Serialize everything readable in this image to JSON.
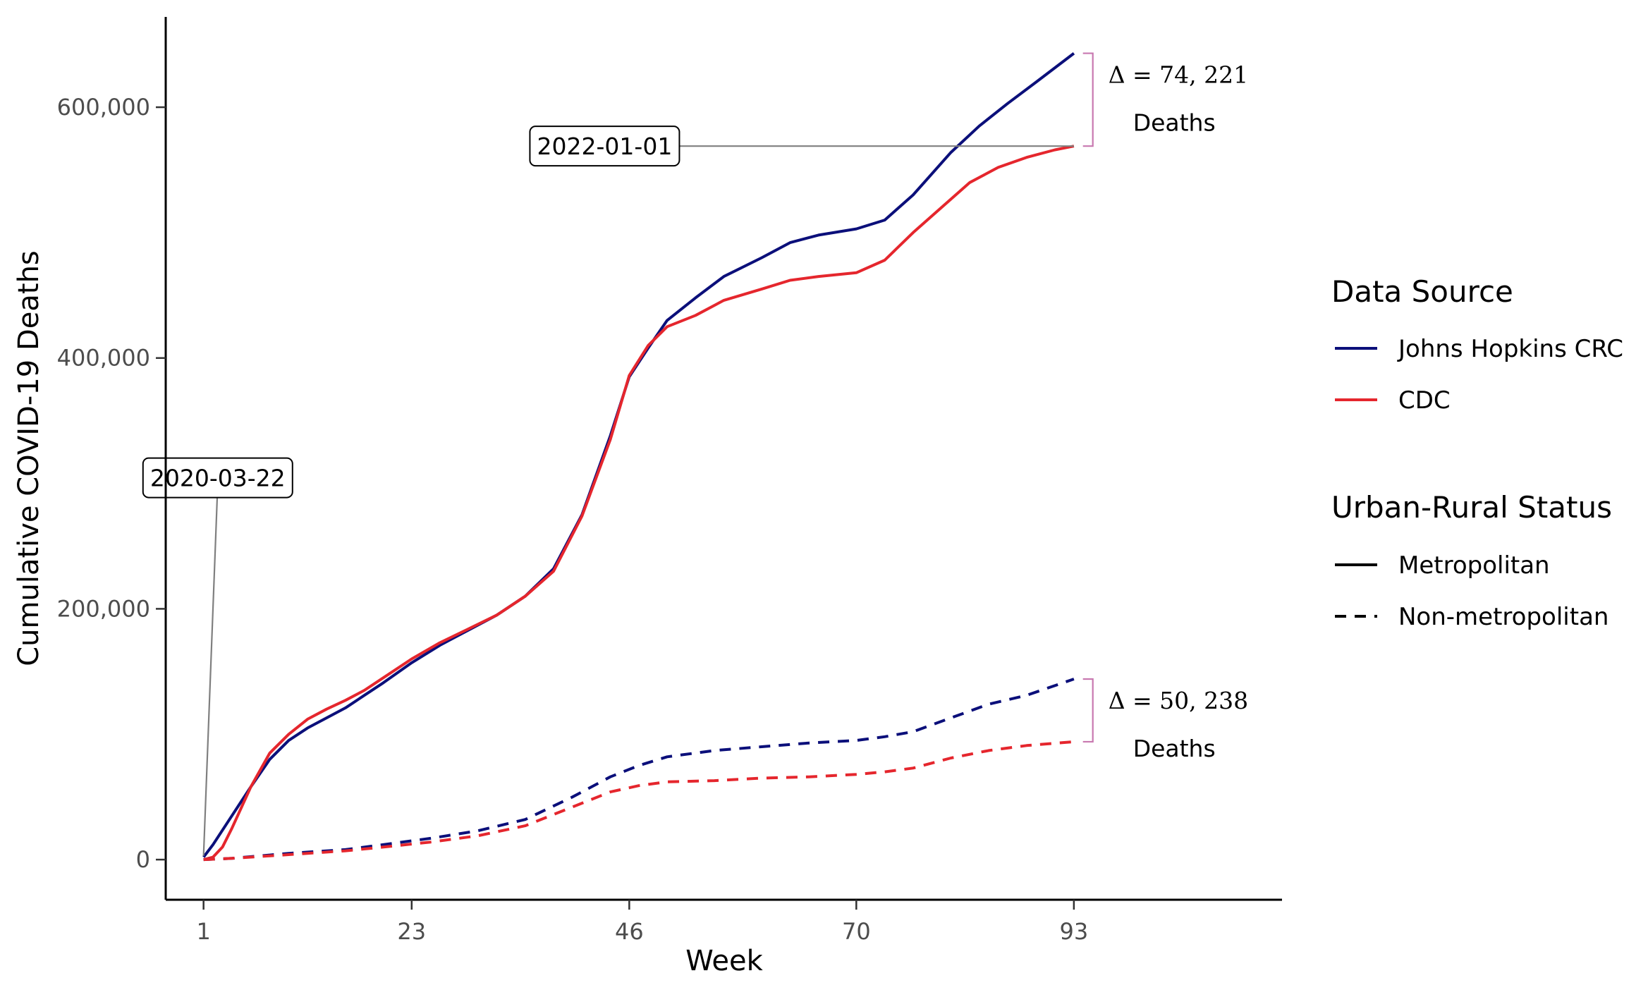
{
  "chart_data": {
    "type": "line",
    "title": "",
    "xlabel": "Week",
    "ylabel": "Cumulative COVID-19 Deaths",
    "xlim": [
      -3,
      115
    ],
    "ylim": [
      -32000,
      672000
    ],
    "x_ticks": [
      1,
      23,
      46,
      70,
      93
    ],
    "x_tick_labels": [
      "1",
      "23",
      "46",
      "70",
      "93"
    ],
    "y_ticks": [
      0,
      200000,
      400000,
      600000
    ],
    "y_tick_labels": [
      "0",
      "200,000",
      "400,000",
      "600,000"
    ],
    "grid": false,
    "colors": {
      "jhu": "#0b0f7a",
      "cdc": "#e5262d",
      "bracket": "#c878b0",
      "annotation_line": "#7f7f7f"
    },
    "series": [
      {
        "name": "Johns Hopkins CRC",
        "status": "Metropolitan",
        "color": "#0b0f7a",
        "dash": "solid",
        "points": [
          [
            1,
            2000
          ],
          [
            2,
            12000
          ],
          [
            4,
            35000
          ],
          [
            6,
            58000
          ],
          [
            8,
            80000
          ],
          [
            10,
            95000
          ],
          [
            12,
            105000
          ],
          [
            14,
            113000
          ],
          [
            16,
            121000
          ],
          [
            18,
            131000
          ],
          [
            20,
            141000
          ],
          [
            23,
            157000
          ],
          [
            26,
            171000
          ],
          [
            29,
            183000
          ],
          [
            32,
            195000
          ],
          [
            35,
            210000
          ],
          [
            38,
            232000
          ],
          [
            41,
            275000
          ],
          [
            44,
            338000
          ],
          [
            46,
            385000
          ],
          [
            48,
            408000
          ],
          [
            50,
            430000
          ],
          [
            53,
            448000
          ],
          [
            56,
            465000
          ],
          [
            60,
            480000
          ],
          [
            63,
            492000
          ],
          [
            66,
            498000
          ],
          [
            70,
            503000
          ],
          [
            73,
            510000
          ],
          [
            76,
            530000
          ],
          [
            80,
            564000
          ],
          [
            83,
            585000
          ],
          [
            86,
            603000
          ],
          [
            89,
            620000
          ],
          [
            93,
            643000
          ]
        ]
      },
      {
        "name": "CDC",
        "status": "Metropolitan",
        "color": "#e5262d",
        "dash": "solid",
        "points": [
          [
            1,
            0
          ],
          [
            2,
            2000
          ],
          [
            3,
            10000
          ],
          [
            4,
            25000
          ],
          [
            6,
            58000
          ],
          [
            8,
            85000
          ],
          [
            10,
            100000
          ],
          [
            12,
            112000
          ],
          [
            14,
            120000
          ],
          [
            16,
            127000
          ],
          [
            18,
            135000
          ],
          [
            20,
            145000
          ],
          [
            23,
            160000
          ],
          [
            26,
            173000
          ],
          [
            29,
            184000
          ],
          [
            32,
            195000
          ],
          [
            35,
            210000
          ],
          [
            38,
            230000
          ],
          [
            41,
            274000
          ],
          [
            44,
            335000
          ],
          [
            46,
            386000
          ],
          [
            48,
            410000
          ],
          [
            50,
            425000
          ],
          [
            53,
            434000
          ],
          [
            56,
            446000
          ],
          [
            60,
            455000
          ],
          [
            63,
            462000
          ],
          [
            66,
            465000
          ],
          [
            70,
            468000
          ],
          [
            73,
            478000
          ],
          [
            76,
            500000
          ],
          [
            79,
            520000
          ],
          [
            82,
            540000
          ],
          [
            85,
            552000
          ],
          [
            88,
            560000
          ],
          [
            91,
            566000
          ],
          [
            93,
            569000
          ]
        ]
      },
      {
        "name": "Johns Hopkins CRC",
        "status": "Non-metropolitan",
        "color": "#0b0f7a",
        "dash": "dashed",
        "points": [
          [
            1,
            0
          ],
          [
            4,
            1000
          ],
          [
            10,
            5000
          ],
          [
            16,
            8000
          ],
          [
            20,
            12000
          ],
          [
            25,
            17000
          ],
          [
            30,
            23000
          ],
          [
            35,
            32000
          ],
          [
            40,
            50000
          ],
          [
            44,
            66000
          ],
          [
            47,
            75000
          ],
          [
            50,
            82000
          ],
          [
            55,
            87000
          ],
          [
            60,
            90000
          ],
          [
            65,
            93000
          ],
          [
            70,
            95000
          ],
          [
            73,
            98000
          ],
          [
            76,
            102000
          ],
          [
            80,
            113000
          ],
          [
            84,
            124000
          ],
          [
            88,
            131000
          ],
          [
            93,
            144000
          ]
        ]
      },
      {
        "name": "CDC",
        "status": "Non-metropolitan",
        "color": "#e5262d",
        "dash": "dashed",
        "points": [
          [
            1,
            0
          ],
          [
            4,
            1000
          ],
          [
            10,
            4000
          ],
          [
            16,
            7000
          ],
          [
            20,
            10000
          ],
          [
            25,
            14000
          ],
          [
            30,
            19000
          ],
          [
            35,
            27000
          ],
          [
            40,
            42000
          ],
          [
            44,
            54000
          ],
          [
            47,
            59000
          ],
          [
            50,
            62000
          ],
          [
            55,
            63000
          ],
          [
            60,
            65000
          ],
          [
            65,
            66000
          ],
          [
            70,
            68000
          ],
          [
            73,
            70000
          ],
          [
            76,
            73000
          ],
          [
            80,
            81000
          ],
          [
            84,
            87000
          ],
          [
            88,
            91000
          ],
          [
            93,
            94000
          ]
        ]
      }
    ],
    "annotations": [
      {
        "label": "2020-03-22",
        "target": [
          1,
          3000
        ],
        "anchor": [
          2.5,
          300000
        ]
      },
      {
        "label": "2022-01-01",
        "target": [
          93,
          569000
        ],
        "anchor": [
          51,
          569000
        ]
      }
    ],
    "brackets": [
      {
        "y_top": 643000,
        "y_bottom": 569000,
        "x": 95,
        "delta_text": "Δ = 74, 221",
        "deaths_text": "Deaths"
      },
      {
        "y_top": 144000,
        "y_bottom": 94000,
        "x": 95,
        "delta_text": "Δ = 50, 238",
        "deaths_text": "Deaths"
      }
    ],
    "legend": {
      "placement": "right",
      "source_title": "Data Source",
      "source_items": [
        {
          "label": "Johns Hopkins CRC",
          "color": "#0b0f7a"
        },
        {
          "label": "CDC",
          "color": "#e5262d"
        }
      ],
      "status_title": "Urban-Rural Status",
      "status_items": [
        {
          "label": "Metropolitan",
          "dash": "solid"
        },
        {
          "label": "Non-metropolitan",
          "dash": "dashed"
        }
      ]
    }
  }
}
